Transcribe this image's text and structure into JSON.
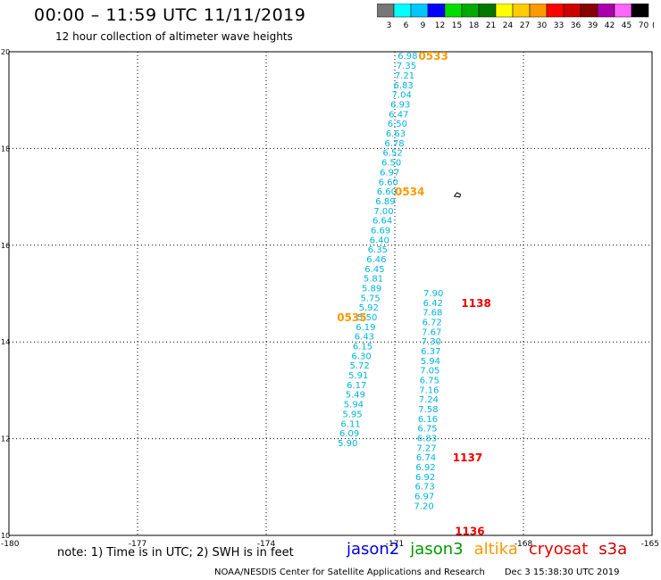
{
  "title": "00:00 – 11:59 UTC 11/11/2019",
  "subtitle": "12 hour collection of altimeter wave heights",
  "colorbar": {
    "labels": [
      "3",
      "6",
      "9",
      "12",
      "15",
      "18",
      "21",
      "24",
      "27",
      "30",
      "33",
      "36",
      "39",
      "42",
      "45",
      "70"
    ],
    "unit": "(ft)",
    "colors": [
      "#777777",
      "#00ffff",
      "#00c8ff",
      "#0000ff",
      "#00dd00",
      "#00aa00",
      "#007700",
      "#ffff00",
      "#ffcc00",
      "#ff9900",
      "#ff0000",
      "#cc0000",
      "#880000",
      "#aa00aa",
      "#ff66ff",
      "#000000"
    ]
  },
  "note": "note: 1) Time is in UTC; 2) SWH is in feet",
  "satellites": [
    {
      "name": "jason2",
      "color": "#0000dd"
    },
    {
      "name": "jason3",
      "color": "#009900"
    },
    {
      "name": "altika",
      "color": "#ff9900"
    },
    {
      "name": "cryosat",
      "color": "#ee0000"
    },
    {
      "name": "s3a",
      "color": "#cc0000"
    }
  ],
  "footer": {
    "source": "NOAA/NESDIS Center for Satellite Applications and Research",
    "date": "Dec  3 15:38:30 UTC 2019"
  },
  "chart_data": {
    "type": "scatter",
    "xlim": [
      -180,
      -165
    ],
    "ylim": [
      10,
      20
    ],
    "x_ticks": [
      "-180",
      "-177",
      "-174",
      "-171",
      "-168",
      "-165"
    ],
    "y_ticks": [
      "10",
      "12",
      "14",
      "16",
      "18",
      "20"
    ],
    "grid": true,
    "point_color": "#00b4dc",
    "tracks": [
      {
        "satellite": "altika",
        "points": [
          {
            "x": -170.7,
            "y": 19.93,
            "v": "6.98"
          },
          {
            "x": -170.73,
            "y": 19.72,
            "v": "7.35"
          },
          {
            "x": -170.77,
            "y": 19.52,
            "v": "7.21"
          },
          {
            "x": -170.8,
            "y": 19.32,
            "v": "6.83"
          },
          {
            "x": -170.84,
            "y": 19.12,
            "v": "7.04"
          },
          {
            "x": -170.87,
            "y": 18.92,
            "v": "6.93"
          },
          {
            "x": -170.91,
            "y": 18.72,
            "v": "6.47"
          },
          {
            "x": -170.94,
            "y": 18.52,
            "v": "6.50"
          },
          {
            "x": -170.98,
            "y": 18.32,
            "v": "6.63"
          },
          {
            "x": -171.01,
            "y": 18.12,
            "v": "6.78"
          },
          {
            "x": -171.05,
            "y": 17.92,
            "v": "6.52"
          },
          {
            "x": -171.08,
            "y": 17.72,
            "v": "6.50"
          },
          {
            "x": -171.12,
            "y": 17.52,
            "v": "6.97"
          },
          {
            "x": -171.15,
            "y": 17.32,
            "v": "6.60"
          },
          {
            "x": -171.19,
            "y": 17.12,
            "v": "6.60"
          },
          {
            "x": -171.22,
            "y": 16.92,
            "v": "6.89"
          },
          {
            "x": -171.26,
            "y": 16.72,
            "v": "7.00"
          },
          {
            "x": -171.29,
            "y": 16.52,
            "v": "6.64"
          },
          {
            "x": -171.33,
            "y": 16.32,
            "v": "6.69"
          },
          {
            "x": -171.36,
            "y": 16.12,
            "v": "6.40"
          },
          {
            "x": -171.4,
            "y": 15.92,
            "v": "6.35"
          },
          {
            "x": -171.43,
            "y": 15.72,
            "v": "6.46"
          },
          {
            "x": -171.47,
            "y": 15.52,
            "v": "6.45"
          },
          {
            "x": -171.5,
            "y": 15.32,
            "v": "5.81"
          },
          {
            "x": -171.54,
            "y": 15.12,
            "v": "5.89"
          },
          {
            "x": -171.57,
            "y": 14.92,
            "v": "5.75"
          },
          {
            "x": -171.61,
            "y": 14.72,
            "v": "5.92"
          },
          {
            "x": -171.64,
            "y": 14.52,
            "v": "5.50"
          },
          {
            "x": -171.68,
            "y": 14.32,
            "v": "6.19"
          },
          {
            "x": -171.71,
            "y": 14.12,
            "v": "6.43"
          },
          {
            "x": -171.75,
            "y": 13.92,
            "v": "6.15"
          },
          {
            "x": -171.78,
            "y": 13.72,
            "v": "6.30"
          },
          {
            "x": -171.82,
            "y": 13.52,
            "v": "5.72"
          },
          {
            "x": -171.85,
            "y": 13.32,
            "v": "5.91"
          },
          {
            "x": -171.89,
            "y": 13.12,
            "v": "6.17"
          },
          {
            "x": -171.92,
            "y": 12.92,
            "v": "5.49"
          },
          {
            "x": -171.96,
            "y": 12.72,
            "v": "5.94"
          },
          {
            "x": -171.99,
            "y": 12.52,
            "v": "5.95"
          },
          {
            "x": -172.03,
            "y": 12.32,
            "v": "6.11"
          },
          {
            "x": -172.06,
            "y": 12.12,
            "v": "6.09"
          },
          {
            "x": -172.1,
            "y": 11.92,
            "v": "5.90"
          }
        ]
      },
      {
        "satellite": "cryosat",
        "points": [
          {
            "x": -170.1,
            "y": 15.02,
            "v": "7.90"
          },
          {
            "x": -170.11,
            "y": 14.82,
            "v": "6.42"
          },
          {
            "x": -170.12,
            "y": 14.62,
            "v": "7.68"
          },
          {
            "x": -170.13,
            "y": 14.42,
            "v": "6.72"
          },
          {
            "x": -170.14,
            "y": 14.22,
            "v": "7.67"
          },
          {
            "x": -170.15,
            "y": 14.02,
            "v": "7.30"
          },
          {
            "x": -170.16,
            "y": 13.82,
            "v": "6.37"
          },
          {
            "x": -170.17,
            "y": 13.62,
            "v": "5.94"
          },
          {
            "x": -170.18,
            "y": 13.42,
            "v": "7.05"
          },
          {
            "x": -170.19,
            "y": 13.22,
            "v": "6.75"
          },
          {
            "x": -170.2,
            "y": 13.02,
            "v": "7.16"
          },
          {
            "x": -170.21,
            "y": 12.82,
            "v": "7.24"
          },
          {
            "x": -170.22,
            "y": 12.62,
            "v": "7.58"
          },
          {
            "x": -170.23,
            "y": 12.42,
            "v": "6.16"
          },
          {
            "x": -170.24,
            "y": 12.22,
            "v": "6.75"
          },
          {
            "x": -170.25,
            "y": 12.02,
            "v": "6.83"
          },
          {
            "x": -170.26,
            "y": 11.82,
            "v": "7.27"
          },
          {
            "x": -170.27,
            "y": 11.62,
            "v": "6.74"
          },
          {
            "x": -170.28,
            "y": 11.42,
            "v": "6.92"
          },
          {
            "x": -170.29,
            "y": 11.22,
            "v": "6.92"
          },
          {
            "x": -170.3,
            "y": 11.02,
            "v": "6.73"
          },
          {
            "x": -170.31,
            "y": 10.82,
            "v": "6.97"
          },
          {
            "x": -170.32,
            "y": 10.62,
            "v": "7.20"
          }
        ]
      }
    ],
    "time_labels": [
      {
        "text": "0533",
        "x": -170.45,
        "y": 19.93,
        "color": "#ff9900"
      },
      {
        "text": "0534",
        "x": -171.0,
        "y": 17.12,
        "color": "#ff9900"
      },
      {
        "text": "0535",
        "x": -172.35,
        "y": 14.52,
        "color": "#ff9900"
      },
      {
        "text": "1138",
        "x": -169.45,
        "y": 14.82,
        "color": "#ee0000"
      },
      {
        "text": "1137",
        "x": -169.65,
        "y": 11.62,
        "color": "#ee0000"
      },
      {
        "text": "1136",
        "x": -169.6,
        "y": 10.1,
        "color": "#ee0000"
      }
    ],
    "island_marker": {
      "x": -169.55,
      "y": 17.05
    }
  }
}
